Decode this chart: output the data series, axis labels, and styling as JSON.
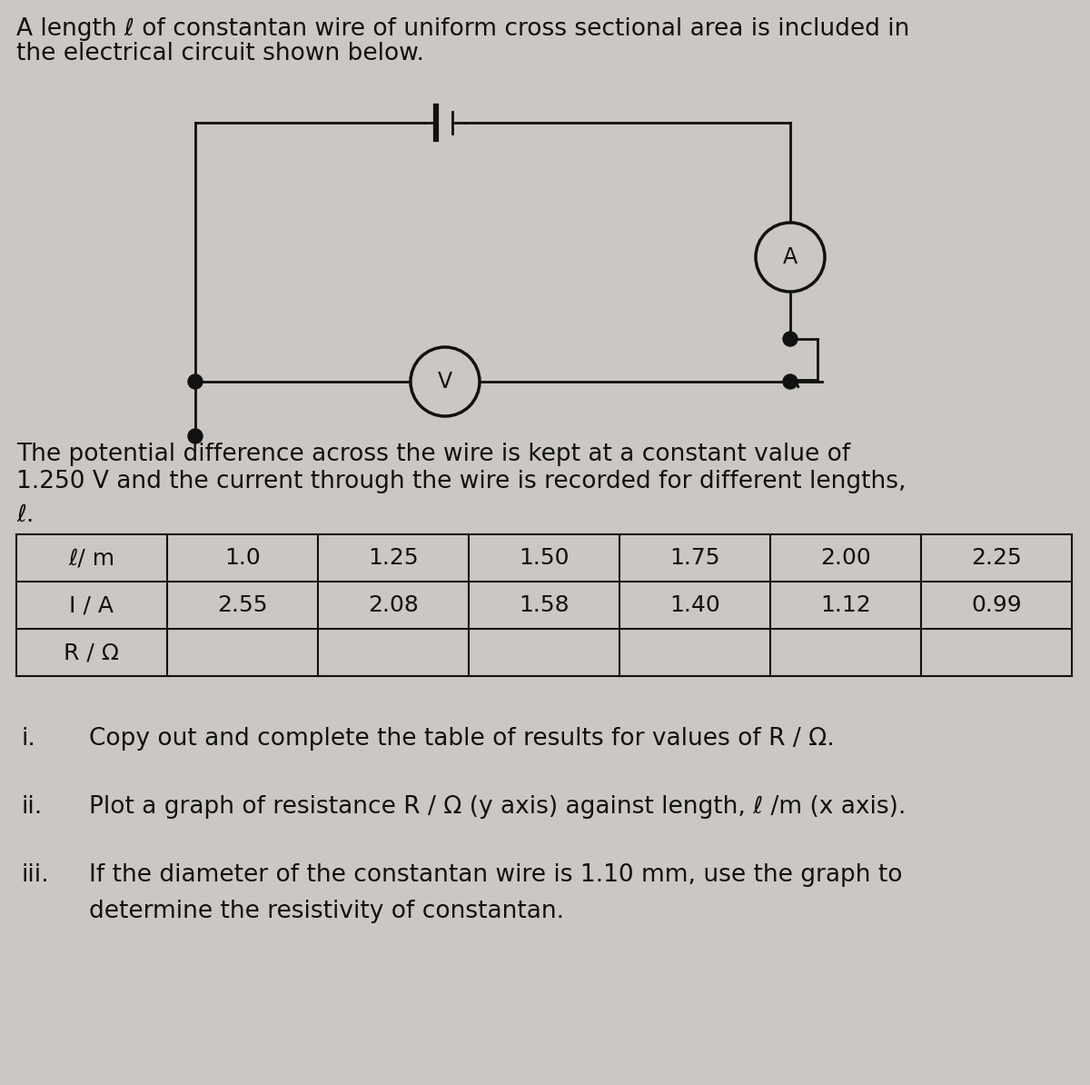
{
  "background_color": "#cbc7c3",
  "title_line1": "A length ℓ of constantan wire of uniform cross sectional area is included in",
  "title_line2": "the electrical circuit shown below.",
  "para_line1": "The potential difference across the wire is kept at a constant value of",
  "para_line2": "1.250 V and the current through the wire is recorded for different lengths,",
  "para_line3": "ℓ.",
  "table_headers": [
    "ℓ/ m",
    "1.0",
    "1.25",
    "1.50",
    "1.75",
    "2.00",
    "2.25"
  ],
  "row1_label": "I / A",
  "row1_values": [
    "2.55",
    "2.08",
    "1.58",
    "1.40",
    "1.12",
    "0.99"
  ],
  "row2_label": "R / Ω",
  "instruction_i_num": "i.",
  "instruction_i_text": "Copy out and complete the table of results for values of R / Ω.",
  "instruction_ii_num": "ii.",
  "instruction_ii_text": "Plot a graph of resistance R / Ω (y axis) against length, ℓ /m (x axis).",
  "instruction_iii_num": "iii.",
  "instruction_iii_line1": "If the diameter of the constantan wire is 1.10 mm, use the graph to",
  "instruction_iii_line2": "determine the resistivity of constantan.",
  "font_size_title": 19,
  "font_size_body": 19,
  "font_size_table": 18,
  "font_size_instr": 19,
  "text_color": "#111111",
  "circuit_color": "#111111",
  "lw_circuit": 2.0
}
